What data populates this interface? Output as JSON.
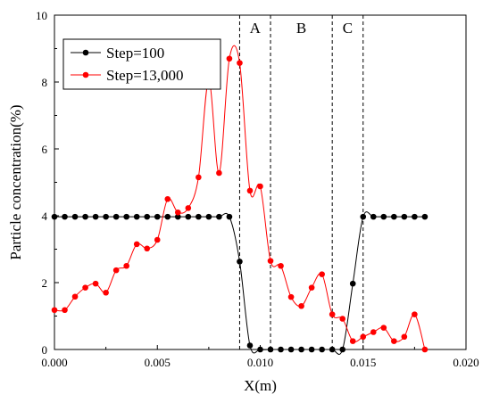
{
  "chart_data": {
    "type": "line",
    "title": "",
    "xlabel": "X(m)",
    "ylabel": "Particle concentration(%)",
    "xlim": [
      0,
      0.02
    ],
    "ylim": [
      0,
      10
    ],
    "x_ticks": [
      0.0,
      0.005,
      0.01,
      0.015,
      0.02
    ],
    "x_tick_labels": [
      "0.000",
      "0.005",
      "0.010",
      "0.015",
      "0.020"
    ],
    "y_ticks": [
      0,
      2,
      4,
      6,
      8,
      10
    ],
    "y_tick_labels": [
      "0",
      "2",
      "4",
      "6",
      "8",
      "10"
    ],
    "grid": false,
    "legend": "top-left",
    "regions": [
      {
        "label": "A",
        "x_start": 0.009,
        "x_end": 0.0105
      },
      {
        "label": "B",
        "x_start": 0.0105,
        "x_end": 0.0135
      },
      {
        "label": "C",
        "x_start": 0.0135,
        "x_end": 0.015
      }
    ],
    "series": [
      {
        "name": "Step=100",
        "color": "#000000",
        "x": [
          0,
          0.0005,
          0.001,
          0.0015,
          0.002,
          0.0025,
          0.003,
          0.0035,
          0.004,
          0.0045,
          0.005,
          0.0055,
          0.006,
          0.0065,
          0.007,
          0.0075,
          0.008,
          0.0085,
          0.009,
          0.0095,
          0.01,
          0.0105,
          0.011,
          0.0115,
          0.012,
          0.0125,
          0.013,
          0.0135,
          0.014,
          0.0145,
          0.015,
          0.0155,
          0.016,
          0.0165,
          0.017,
          0.0175,
          0.018
        ],
        "values": [
          3.97,
          3.97,
          3.97,
          3.97,
          3.97,
          3.97,
          3.97,
          3.97,
          3.97,
          3.97,
          3.97,
          3.97,
          3.97,
          3.97,
          3.97,
          3.97,
          3.97,
          3.97,
          2.63,
          0.12,
          0.0,
          0.0,
          0.0,
          0.0,
          0.0,
          0.0,
          0.0,
          0.0,
          0.0,
          1.97,
          3.97,
          3.97,
          3.97,
          3.97,
          3.97,
          3.97,
          3.97
        ]
      },
      {
        "name": "Step=13,000",
        "color": "#ff0000",
        "x": [
          0,
          0.0005,
          0.001,
          0.0015,
          0.002,
          0.0025,
          0.003,
          0.0035,
          0.004,
          0.0045,
          0.005,
          0.0055,
          0.006,
          0.0065,
          0.007,
          0.0075,
          0.008,
          0.0085,
          0.009,
          0.0095,
          0.01,
          0.0105,
          0.011,
          0.0115,
          0.012,
          0.0125,
          0.013,
          0.0135,
          0.014,
          0.0145,
          0.015,
          0.0155,
          0.016,
          0.0165,
          0.017,
          0.0175,
          0.018
        ],
        "values": [
          1.18,
          1.18,
          1.58,
          1.85,
          1.97,
          1.7,
          2.37,
          2.5,
          3.15,
          3.02,
          3.28,
          4.5,
          4.1,
          4.23,
          5.15,
          8.05,
          5.28,
          8.7,
          8.57,
          4.75,
          4.88,
          2.65,
          2.5,
          1.57,
          1.3,
          1.85,
          2.25,
          1.05,
          0.92,
          0.25,
          0.38,
          0.52,
          0.65,
          0.25,
          0.38,
          1.05,
          0.0
        ]
      }
    ]
  }
}
